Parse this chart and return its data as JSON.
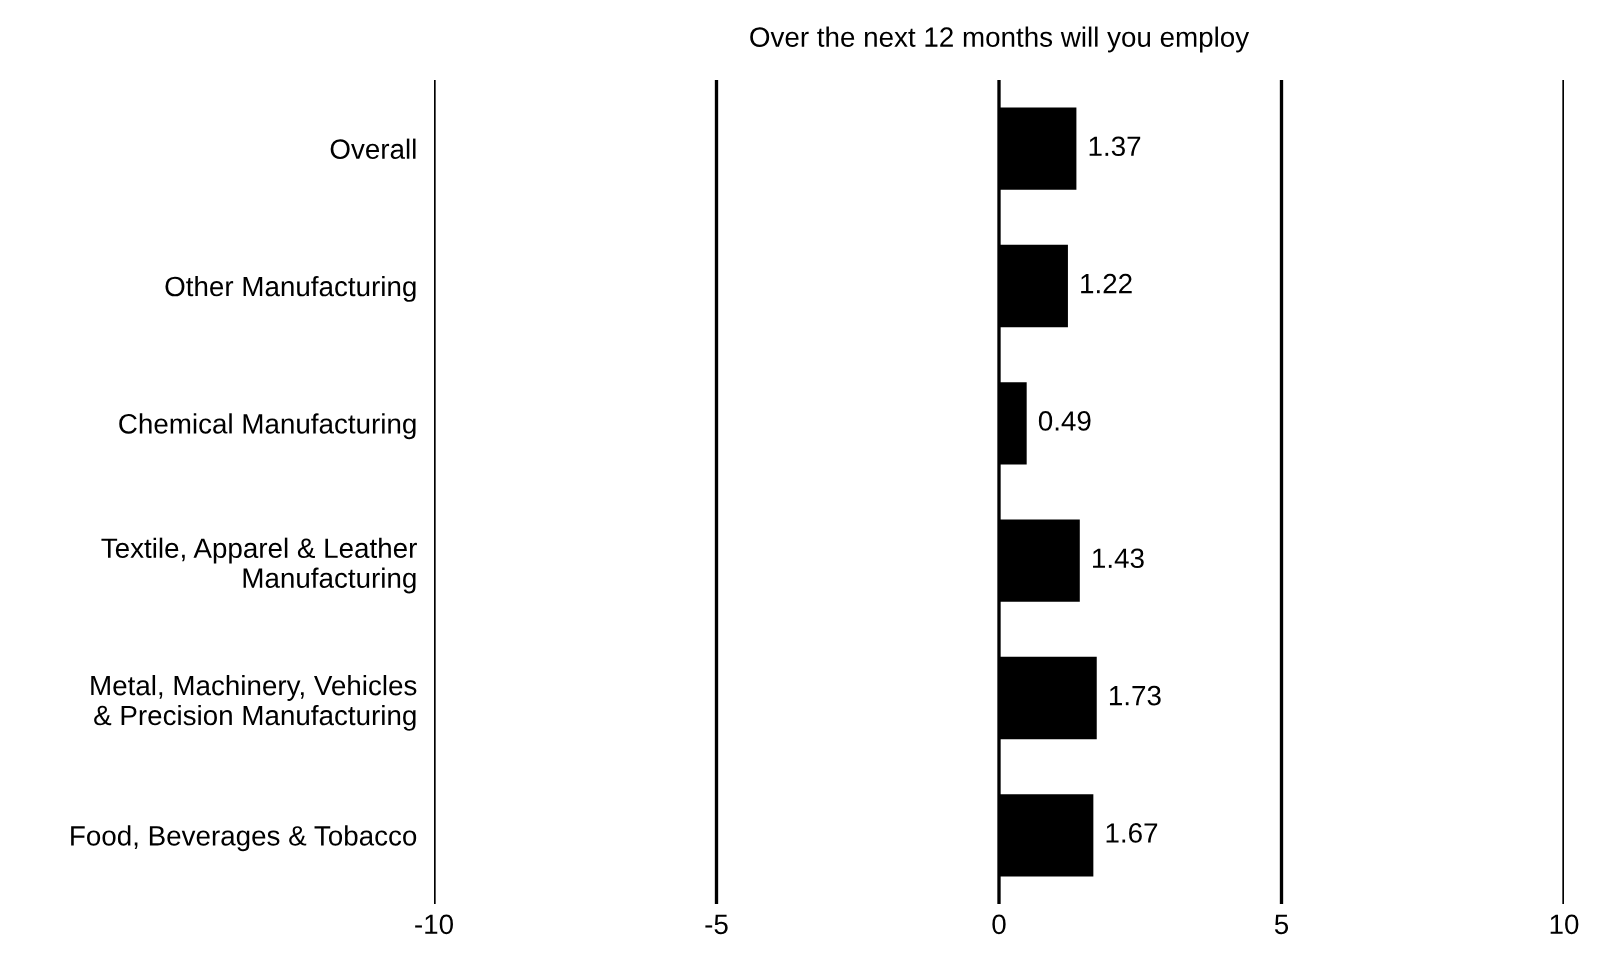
{
  "chart_data": {
    "type": "bar",
    "orientation": "horizontal",
    "title": "Over the next 12 months will you employ",
    "categories": [
      "Overall",
      "Other Manufacturing",
      "Chemical Manufacturing",
      "Textile, Apparel & Leather\nManufacturing",
      "Metal, Machinery, Vehicles\n& Precision Manufacturing",
      "Food, Beverages & Tobacco"
    ],
    "values": [
      1.37,
      1.22,
      0.49,
      1.43,
      1.73,
      1.67
    ],
    "color": "#000000",
    "xlim": [
      -10,
      10
    ],
    "xticks": [
      -10,
      -5,
      0,
      5,
      10
    ],
    "grid": "x",
    "data_labels": true
  }
}
